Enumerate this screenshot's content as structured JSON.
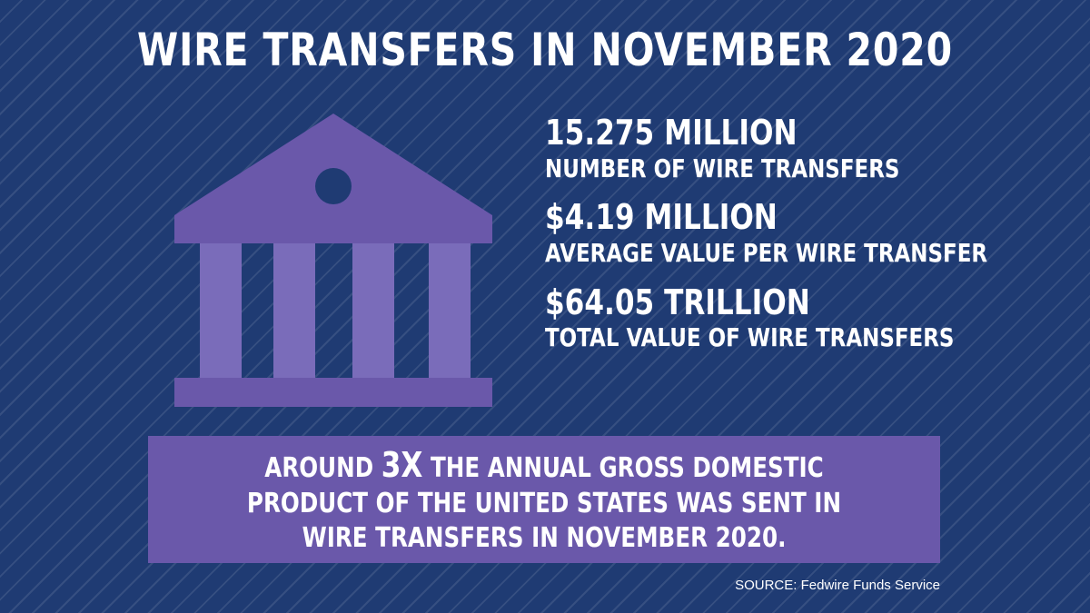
{
  "title": "WIRE TRANSFERS IN NOVEMBER 2020",
  "stats": [
    {
      "value": "15.275 MILLION",
      "label": "NUMBER OF WIRE TRANSFERS"
    },
    {
      "value": "$4.19 MILLION",
      "label": "AVERAGE VALUE PER WIRE TRANSFER"
    },
    {
      "value": "$64.05 TRILLION",
      "label": "TOTAL VALUE OF WIRE TRANSFERS"
    }
  ],
  "callout": {
    "prefix": "AROUND ",
    "emphasis": "3X",
    "suffix": " THE ANNUAL GROSS DOMESTIC PRODUCT OF THE UNITED STATES WAS SENT IN WIRE TRANSFERS IN NOVEMBER 2020."
  },
  "source": "SOURCE: Fedwire Funds Service",
  "icons": {
    "bank": "bank-building-icon"
  },
  "colors": {
    "background": "#1f3b73",
    "accent": "#6a58aa",
    "column": "#7a6cba",
    "text": "#ffffff"
  }
}
